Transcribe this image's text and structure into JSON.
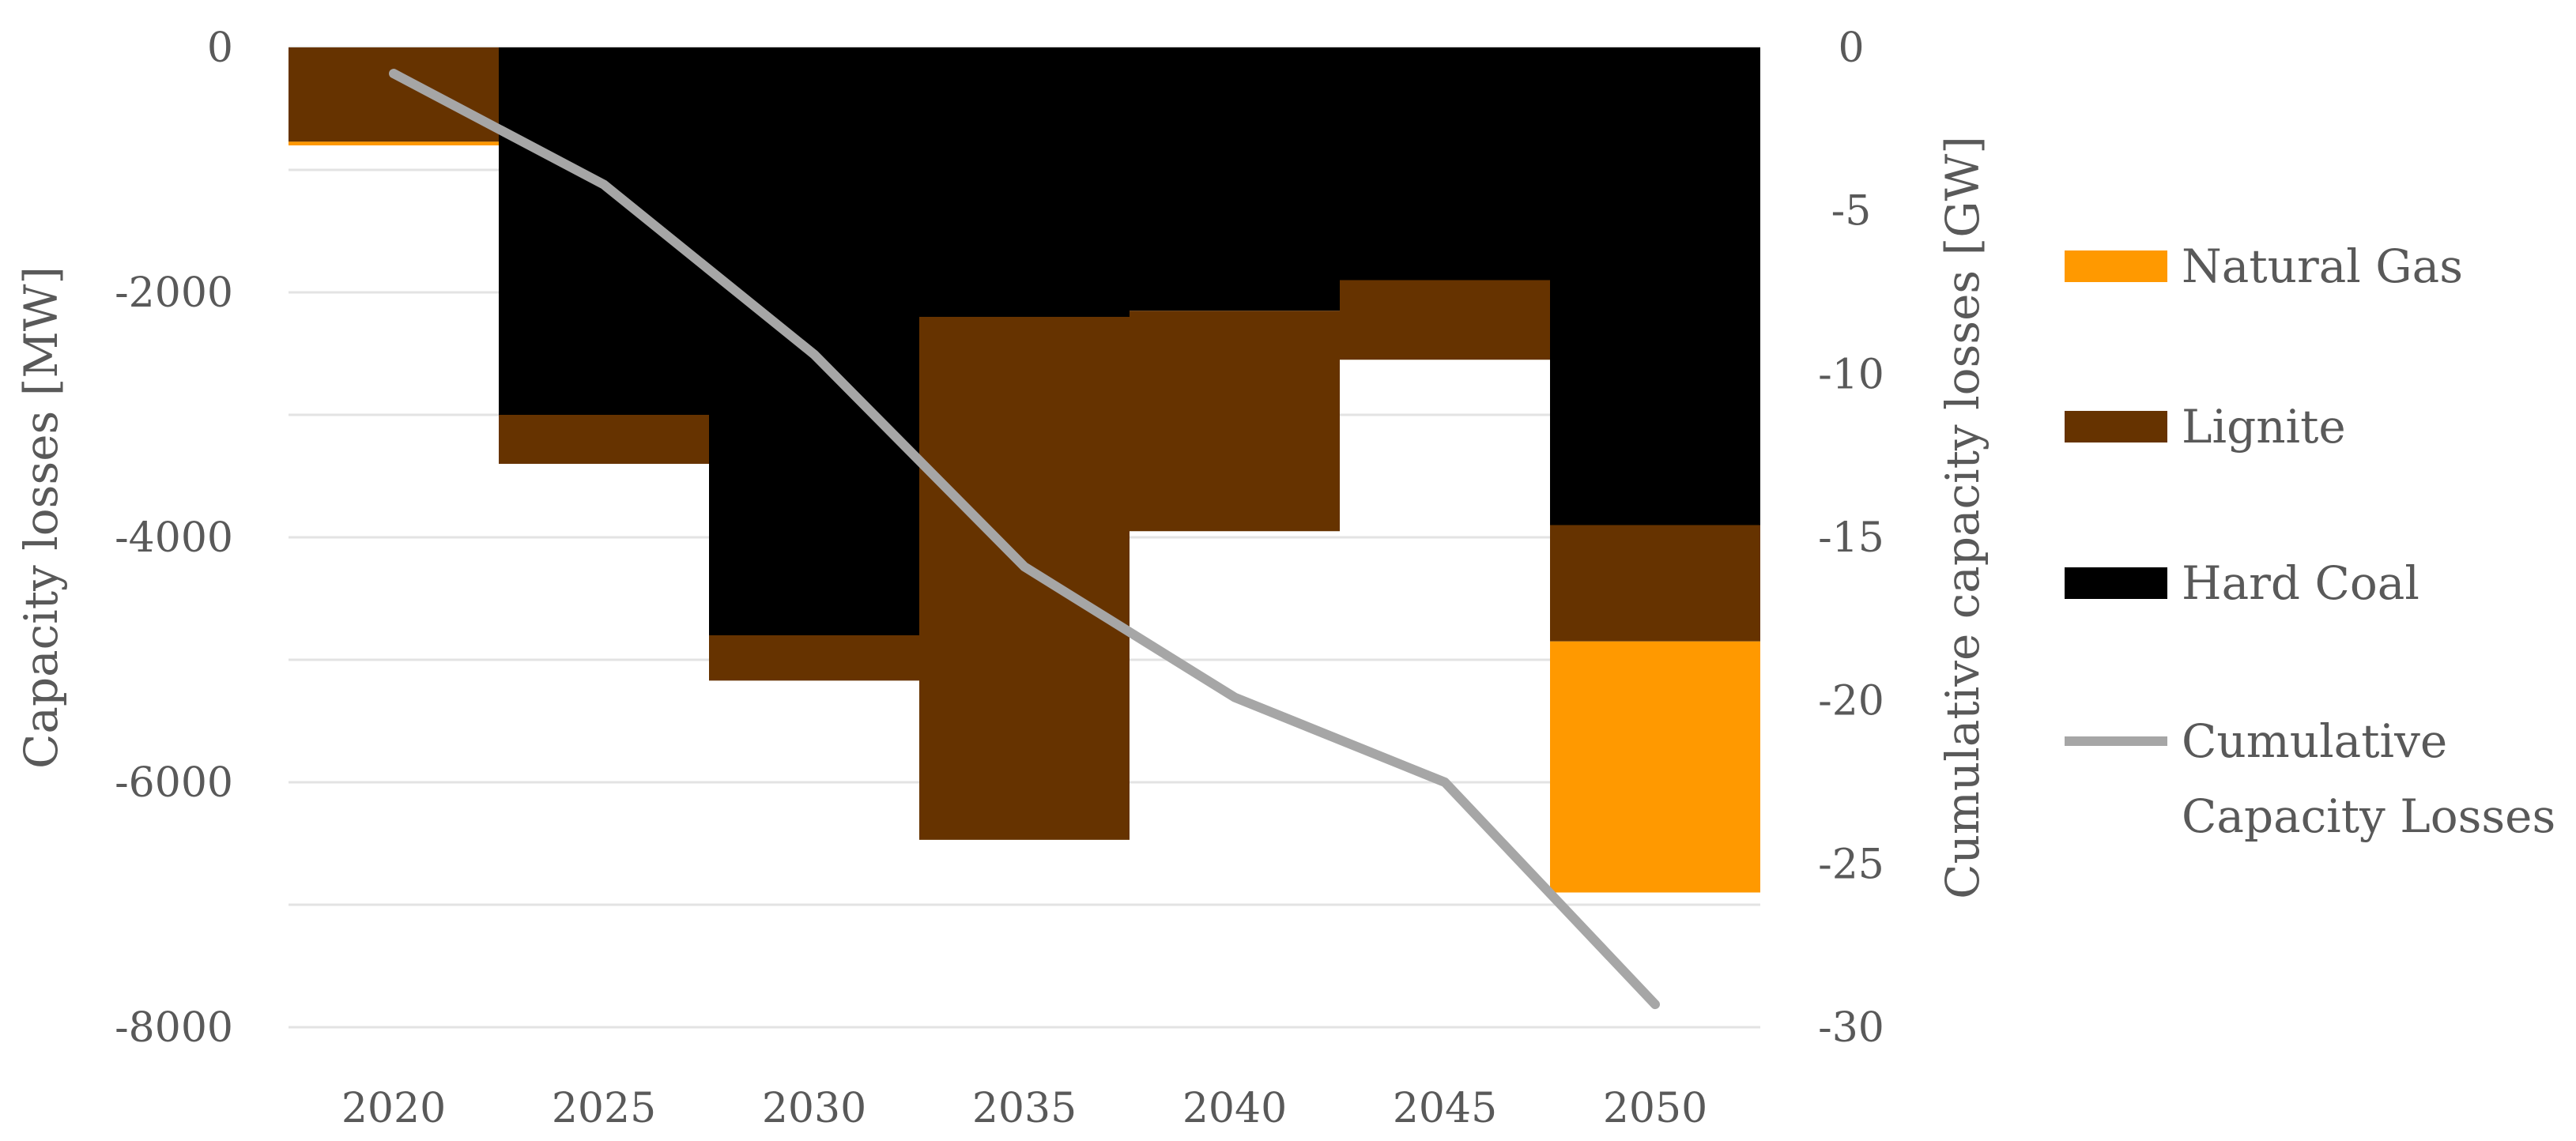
{
  "chart_data": {
    "type": "bar",
    "stacked": true,
    "categories": [
      "2020",
      "2025",
      "2030",
      "2035",
      "2040",
      "2045",
      "2050"
    ],
    "series": [
      {
        "name": "Hard Coal",
        "color": "#000000",
        "values": [
          0,
          -3000,
          -4800,
          -2200,
          -2150,
          -1900,
          -3900
        ]
      },
      {
        "name": "Lignite",
        "color": "#663300",
        "values": [
          -770,
          -400,
          -370,
          -4270,
          -1800,
          -650,
          -950
        ]
      },
      {
        "name": "Natural Gas",
        "color": "#ff9900",
        "values": [
          -30,
          0,
          0,
          0,
          0,
          0,
          -2050
        ]
      }
    ],
    "line_series": {
      "name": "Cumulative Capacity Losses",
      "legend_label_lines": [
        "Cumulative",
        "Capacity Losses"
      ],
      "color": "#a6a6a6",
      "axis": "right",
      "values": [
        -0.8,
        -4.2,
        -9.4,
        -15.9,
        -19.9,
        -22.5,
        -29.3
      ]
    },
    "ylabel": "Capacity losses [MW]",
    "y2label": "Cumulative capacity losses [GW]",
    "ylim": [
      -8000,
      0
    ],
    "y2lim": [
      -30,
      0
    ],
    "yticks": [
      "0",
      "-2000",
      "-4000",
      "-6000",
      "-8000"
    ],
    "y2ticks": [
      "0",
      "-5",
      "-10",
      "-15",
      "-20",
      "-25",
      "-30"
    ],
    "legend_order": [
      "Natural Gas",
      "Lignite",
      "Hard Coal",
      "Cumulative Capacity Losses"
    ],
    "legend_position": "right",
    "grid": true
  }
}
